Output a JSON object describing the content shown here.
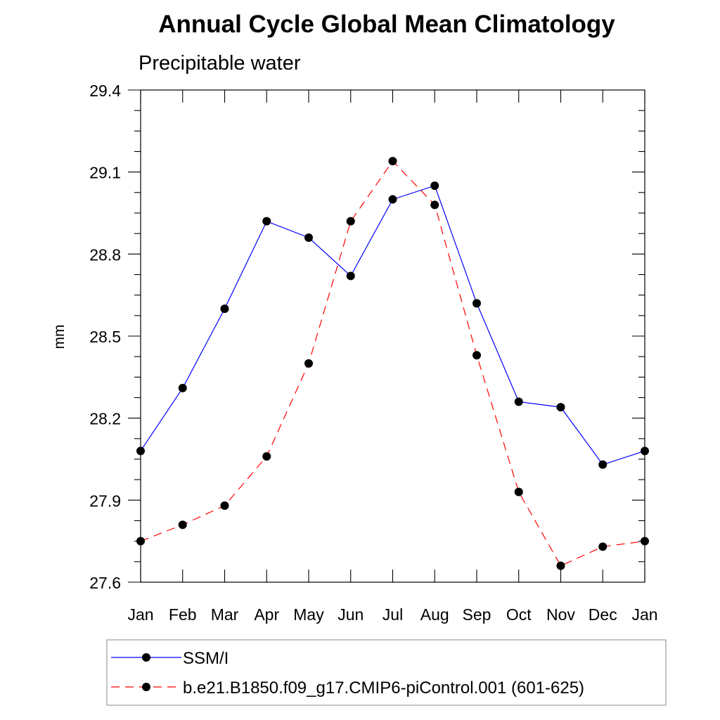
{
  "chart_data": {
    "type": "line",
    "title": "Annual Cycle Global Mean Climatology",
    "subtitle": "Precipitable water",
    "xlabel": "",
    "ylabel": "mm",
    "categories": [
      "Jan",
      "Feb",
      "Mar",
      "Apr",
      "May",
      "Jun",
      "Jul",
      "Aug",
      "Sep",
      "Oct",
      "Nov",
      "Dec",
      "Jan"
    ],
    "ylim": [
      27.6,
      29.4
    ],
    "yticks": [
      "27.6",
      "27.9",
      "28.2",
      "28.5",
      "28.8",
      "29.1",
      "29.4"
    ],
    "grid": false,
    "legend_position": "bottom",
    "series": [
      {
        "name": "SSM/I",
        "color": "#0000ff",
        "style": "solid",
        "values": [
          28.08,
          28.31,
          28.6,
          28.92,
          28.86,
          28.72,
          29.0,
          29.05,
          28.62,
          28.26,
          28.24,
          28.03,
          28.08
        ]
      },
      {
        "name": "b.e21.B1850.f09_g17.CMIP6-piControl.001 (601-625)",
        "color": "#ff0000",
        "style": "dashed",
        "values": [
          27.75,
          27.81,
          27.88,
          28.06,
          28.4,
          28.92,
          29.14,
          28.98,
          28.43,
          27.93,
          27.66,
          27.73,
          27.75
        ]
      }
    ]
  }
}
